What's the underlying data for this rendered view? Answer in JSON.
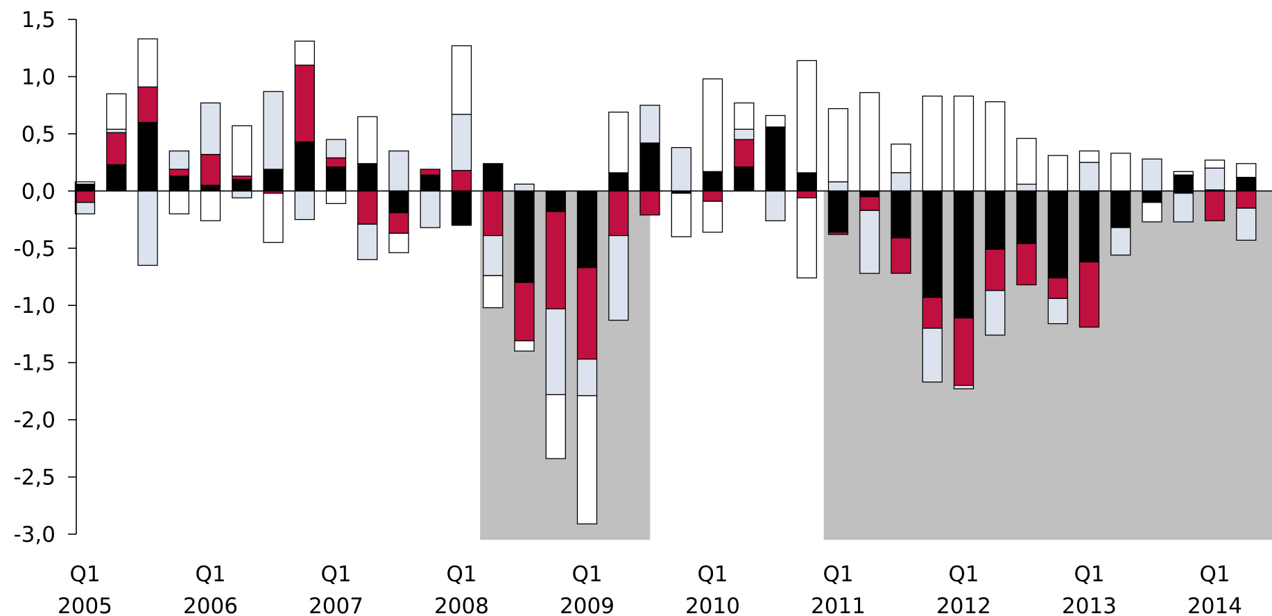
{
  "chart_data": {
    "type": "bar",
    "stacked": true,
    "title": "",
    "xlabel": "",
    "ylabel": "",
    "ylim": [
      -3.0,
      1.5
    ],
    "y_ticks": [
      "1,5",
      "1,0",
      "0,5",
      "0,0",
      "-0,5",
      "-1,0",
      "-1,5",
      "-2,0",
      "-2,5",
      "-3,0"
    ],
    "y_tick_values": [
      1.5,
      1.0,
      0.5,
      0.0,
      -0.5,
      -1.0,
      -1.5,
      -2.0,
      -2.5,
      -3.0
    ],
    "grid": false,
    "legend": "none",
    "x_tick_labels": [
      {
        "q": "Q1",
        "year": "2005"
      },
      {
        "q": "Q1",
        "year": "2006"
      },
      {
        "q": "Q1",
        "year": "2007"
      },
      {
        "q": "Q1",
        "year": "2008"
      },
      {
        "q": "Q1",
        "year": "2009"
      },
      {
        "q": "Q1",
        "year": "2010"
      },
      {
        "q": "Q1",
        "year": "2011"
      },
      {
        "q": "Q1",
        "year": "2012"
      },
      {
        "q": "Q1",
        "year": "2013"
      },
      {
        "q": "Q1",
        "year": "2014"
      }
    ],
    "series_order": [
      "black",
      "red",
      "light",
      "white"
    ],
    "colors": {
      "black": "#000000",
      "red": "#c0103f",
      "light": "#dde3ee",
      "white": "#ffffff",
      "shade": "#c0c0c0",
      "edge": "#000000"
    },
    "shaded_periods": [
      {
        "from_index": 12.9,
        "to_index": 17.7
      },
      {
        "from_index": 23.85,
        "to_index": 38.5
      }
    ],
    "quarters": [
      {
        "pos": [
          0.06,
          0.0,
          0.0,
          0.02
        ],
        "neg": [
          0.0,
          -0.1,
          -0.1,
          0.0
        ]
      },
      {
        "pos": [
          0.23,
          0.28,
          0.03,
          0.31
        ],
        "neg": [
          0.0,
          0.0,
          0.0,
          0.0
        ]
      },
      {
        "pos": [
          0.6,
          0.31,
          0.0,
          0.42
        ],
        "neg": [
          0.0,
          0.0,
          -0.65,
          0.0
        ]
      },
      {
        "pos": [
          0.13,
          0.06,
          0.16,
          0.0
        ],
        "neg": [
          0.0,
          0.0,
          0.0,
          -0.2
        ]
      },
      {
        "pos": [
          0.05,
          0.27,
          0.45,
          0.0
        ],
        "neg": [
          0.0,
          0.0,
          0.0,
          -0.26
        ]
      },
      {
        "pos": [
          0.1,
          0.03,
          0.0,
          0.44
        ],
        "neg": [
          0.0,
          0.0,
          -0.06,
          0.0
        ]
      },
      {
        "pos": [
          0.19,
          0.0,
          0.68,
          0.0
        ],
        "neg": [
          0.0,
          -0.02,
          0.0,
          -0.43
        ]
      },
      {
        "pos": [
          0.43,
          0.67,
          0.0,
          0.21
        ],
        "neg": [
          0.0,
          0.0,
          -0.25,
          0.0
        ]
      },
      {
        "pos": [
          0.21,
          0.08,
          0.16,
          0.0
        ],
        "neg": [
          0.0,
          0.0,
          0.0,
          -0.11
        ]
      },
      {
        "pos": [
          0.24,
          0.0,
          0.0,
          0.41
        ],
        "neg": [
          0.0,
          -0.29,
          -0.31,
          0.0
        ]
      },
      {
        "pos": [
          0.0,
          0.0,
          0.35,
          0.0
        ],
        "neg": [
          -0.19,
          -0.18,
          0.0,
          -0.17
        ]
      },
      {
        "pos": [
          0.14,
          0.05,
          0.0,
          0.0
        ],
        "neg": [
          0.0,
          0.0,
          -0.32,
          0.0
        ]
      },
      {
        "pos": [
          0.0,
          0.18,
          0.49,
          0.6
        ],
        "neg": [
          -0.3,
          0.0,
          0.0,
          0.0
        ]
      },
      {
        "pos": [
          0.24,
          0.0,
          0.0,
          0.0
        ],
        "neg": [
          0.0,
          -0.39,
          -0.35,
          -0.28
        ]
      },
      {
        "pos": [
          0.0,
          0.0,
          0.06,
          0.0
        ],
        "neg": [
          -0.8,
          -0.51,
          0.0,
          -0.09
        ]
      },
      {
        "pos": [
          0.0,
          0.0,
          0.0,
          0.0
        ],
        "neg": [
          -0.18,
          -0.85,
          -0.75,
          -0.56
        ]
      },
      {
        "pos": [
          0.0,
          0.0,
          0.0,
          0.0
        ],
        "neg": [
          -0.67,
          -0.8,
          -0.32,
          -1.12
        ]
      },
      {
        "pos": [
          0.16,
          0.0,
          0.0,
          0.53
        ],
        "neg": [
          0.0,
          -0.39,
          -0.74,
          0.0
        ]
      },
      {
        "pos": [
          0.42,
          0.0,
          0.33,
          0.0
        ],
        "neg": [
          0.0,
          -0.21,
          0.0,
          0.0
        ]
      },
      {
        "pos": [
          0.0,
          0.0,
          0.38,
          0.0
        ],
        "neg": [
          -0.02,
          0.0,
          0.0,
          -0.38
        ]
      },
      {
        "pos": [
          0.17,
          0.0,
          0.0,
          0.81
        ],
        "neg": [
          0.0,
          -0.09,
          0.0,
          -0.27
        ]
      },
      {
        "pos": [
          0.21,
          0.24,
          0.09,
          0.23
        ],
        "neg": [
          0.0,
          0.0,
          0.0,
          0.0
        ]
      },
      {
        "pos": [
          0.56,
          0.0,
          0.0,
          0.1
        ],
        "neg": [
          0.0,
          0.0,
          -0.26,
          0.0
        ]
      },
      {
        "pos": [
          0.16,
          0.0,
          0.0,
          0.98
        ],
        "neg": [
          0.0,
          -0.06,
          0.0,
          -0.7
        ]
      },
      {
        "pos": [
          0.0,
          0.0,
          0.08,
          0.64
        ],
        "neg": [
          -0.36,
          -0.02,
          0.0,
          0.0
        ]
      },
      {
        "pos": [
          0.0,
          0.0,
          0.0,
          0.86
        ],
        "neg": [
          -0.05,
          -0.12,
          -0.55,
          0.0
        ]
      },
      {
        "pos": [
          0.0,
          0.0,
          0.16,
          0.25
        ],
        "neg": [
          -0.41,
          -0.31,
          0.0,
          0.0
        ]
      },
      {
        "pos": [
          0.0,
          0.0,
          0.0,
          0.83
        ],
        "neg": [
          -0.93,
          -0.27,
          -0.47,
          0.0
        ]
      },
      {
        "pos": [
          0.0,
          0.0,
          0.0,
          0.83
        ],
        "neg": [
          -1.11,
          -0.59,
          -0.03,
          0.0
        ]
      },
      {
        "pos": [
          0.0,
          0.0,
          0.0,
          0.78
        ],
        "neg": [
          -0.51,
          -0.36,
          -0.39,
          0.0
        ]
      },
      {
        "pos": [
          0.0,
          0.0,
          0.06,
          0.4
        ],
        "neg": [
          -0.46,
          -0.36,
          0.0,
          0.0
        ]
      },
      {
        "pos": [
          0.0,
          0.0,
          0.0,
          0.31
        ],
        "neg": [
          -0.76,
          -0.18,
          -0.22,
          0.0
        ]
      },
      {
        "pos": [
          0.0,
          0.0,
          0.25,
          0.1
        ],
        "neg": [
          -0.62,
          -0.57,
          0.0,
          0.0
        ]
      },
      {
        "pos": [
          0.0,
          0.0,
          0.0,
          0.33
        ],
        "neg": [
          -0.32,
          0.0,
          -0.24,
          0.0
        ]
      },
      {
        "pos": [
          0.0,
          0.0,
          0.28,
          0.0
        ],
        "neg": [
          -0.1,
          0.0,
          0.0,
          -0.17
        ]
      },
      {
        "pos": [
          0.14,
          0.0,
          0.0,
          0.03
        ],
        "neg": [
          -0.02,
          0.0,
          -0.25,
          0.0
        ]
      },
      {
        "pos": [
          0.0,
          0.01,
          0.19,
          0.07
        ],
        "neg": [
          0.0,
          -0.26,
          0.0,
          0.0
        ]
      },
      {
        "pos": [
          0.12,
          0.0,
          0.0,
          0.12
        ],
        "neg": [
          0.0,
          -0.15,
          -0.28,
          0.0
        ]
      }
    ]
  }
}
